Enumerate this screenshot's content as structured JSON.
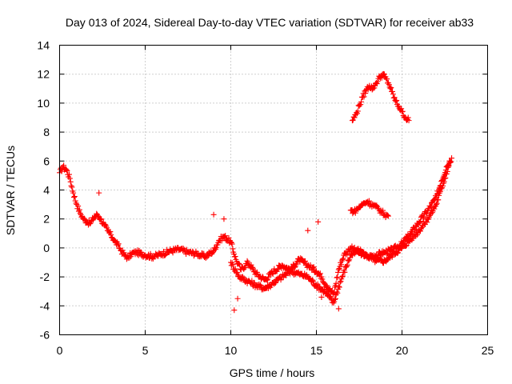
{
  "chart_data": {
    "type": "scatter",
    "title": "Day 013 of 2024, Sidereal Day-to-day VTEC variation (SDTVAR) for receiver ab33",
    "xlabel": "GPS time / hours",
    "ylabel": "SDTVAR / TECUs",
    "xlim": [
      0,
      25
    ],
    "ylim": [
      -6,
      14
    ],
    "xticks": [
      "0",
      "5",
      "10",
      "15",
      "20",
      "25"
    ],
    "yticks": [
      "-6",
      "-4",
      "-2",
      "0",
      "2",
      "4",
      "6",
      "8",
      "10",
      "12",
      "14"
    ],
    "grid": true,
    "marker": "+",
    "series_color": "#ff0000",
    "series": [
      {
        "name": "main",
        "x": [
          0.0,
          0.2,
          0.4,
          0.6,
          0.8,
          1.0,
          1.2,
          1.4,
          1.6,
          1.8,
          2.0,
          2.2,
          2.4,
          2.6,
          2.8,
          3.0,
          3.2,
          3.4,
          3.6,
          3.8,
          4.0,
          4.2,
          4.5,
          5.0,
          5.5,
          6.0,
          6.5,
          7.0,
          7.5,
          8.0,
          8.5,
          9.0,
          9.3,
          9.6,
          10.0,
          10.3,
          10.6,
          11.0,
          11.5,
          12.0,
          12.5,
          13.0,
          13.5,
          14.0,
          14.5,
          15.0,
          15.3,
          15.6,
          16.0,
          16.3,
          16.6,
          17.0,
          17.5,
          18.0,
          18.5,
          19.0,
          19.5,
          20.0,
          20.5,
          21.0,
          21.5,
          22.0,
          22.3,
          22.6,
          22.9
        ],
        "y": [
          5.2,
          5.6,
          5.4,
          4.8,
          3.8,
          3.0,
          2.4,
          2.0,
          1.8,
          1.7,
          2.1,
          2.3,
          2.0,
          1.6,
          1.2,
          0.9,
          0.5,
          0.2,
          -0.2,
          -0.5,
          -0.7,
          -0.4,
          -0.3,
          -0.5,
          -0.6,
          -0.4,
          -0.2,
          -0.1,
          -0.3,
          -0.4,
          -0.6,
          -0.2,
          0.5,
          0.8,
          0.4,
          -0.8,
          -1.5,
          -1.0,
          -1.8,
          -2.2,
          -1.6,
          -1.2,
          -1.5,
          -0.8,
          -1.2,
          -1.6,
          -2.0,
          -2.6,
          -3.2,
          -1.5,
          -0.5,
          0.0,
          -0.3,
          -0.6,
          -0.5,
          -0.3,
          -0.1,
          0.3,
          1.0,
          1.8,
          2.6,
          3.5,
          4.6,
          5.6,
          6.2
        ]
      },
      {
        "name": "lower band",
        "x": [
          10.0,
          10.5,
          11.0,
          11.5,
          12.0,
          12.5,
          13.0,
          13.5,
          14.0,
          14.5,
          15.0,
          15.5,
          16.0,
          16.5,
          17.0,
          17.5,
          18.0,
          18.5,
          19.0,
          19.5,
          20.0,
          20.5,
          21.0,
          21.5,
          22.0,
          22.5,
          22.8
        ],
        "y": [
          -1.0,
          -2.0,
          -2.3,
          -2.6,
          -2.8,
          -2.4,
          -2.0,
          -1.6,
          -1.8,
          -2.0,
          -2.6,
          -3.0,
          -3.8,
          -2.0,
          -0.5,
          -0.2,
          -0.6,
          -0.9,
          -0.9,
          -0.4,
          0.0,
          0.6,
          1.2,
          2.0,
          3.0,
          4.8,
          6.0
        ]
      },
      {
        "name": "upper arc",
        "x": [
          17.1,
          17.3,
          17.5,
          17.7,
          17.9,
          18.1,
          18.3,
          18.5,
          18.7,
          18.9,
          19.0,
          19.2,
          19.4,
          19.6,
          19.8,
          20.0,
          20.2,
          20.4
        ],
        "y": [
          8.8,
          9.2,
          9.8,
          10.4,
          10.9,
          11.2,
          11.0,
          11.4,
          11.8,
          12.0,
          11.8,
          11.4,
          10.8,
          10.2,
          9.8,
          9.4,
          9.0,
          8.8
        ]
      },
      {
        "name": "middle arc",
        "x": [
          17.0,
          17.2,
          17.4,
          17.6,
          17.8,
          18.0,
          18.2,
          18.4,
          18.6,
          18.8,
          19.0,
          19.2
        ],
        "y": [
          2.6,
          2.5,
          2.7,
          2.9,
          3.1,
          3.2,
          3.0,
          2.9,
          2.7,
          2.5,
          2.3,
          2.2
        ]
      },
      {
        "name": "outliers",
        "x": [
          10.2,
          10.4,
          14.5,
          15.1,
          15.3,
          16.1,
          16.3,
          9.0,
          9.6,
          2.3
        ],
        "y": [
          -4.3,
          -3.5,
          1.2,
          1.8,
          -3.4,
          -3.2,
          -4.2,
          2.3,
          2.0,
          3.8
        ]
      }
    ]
  }
}
